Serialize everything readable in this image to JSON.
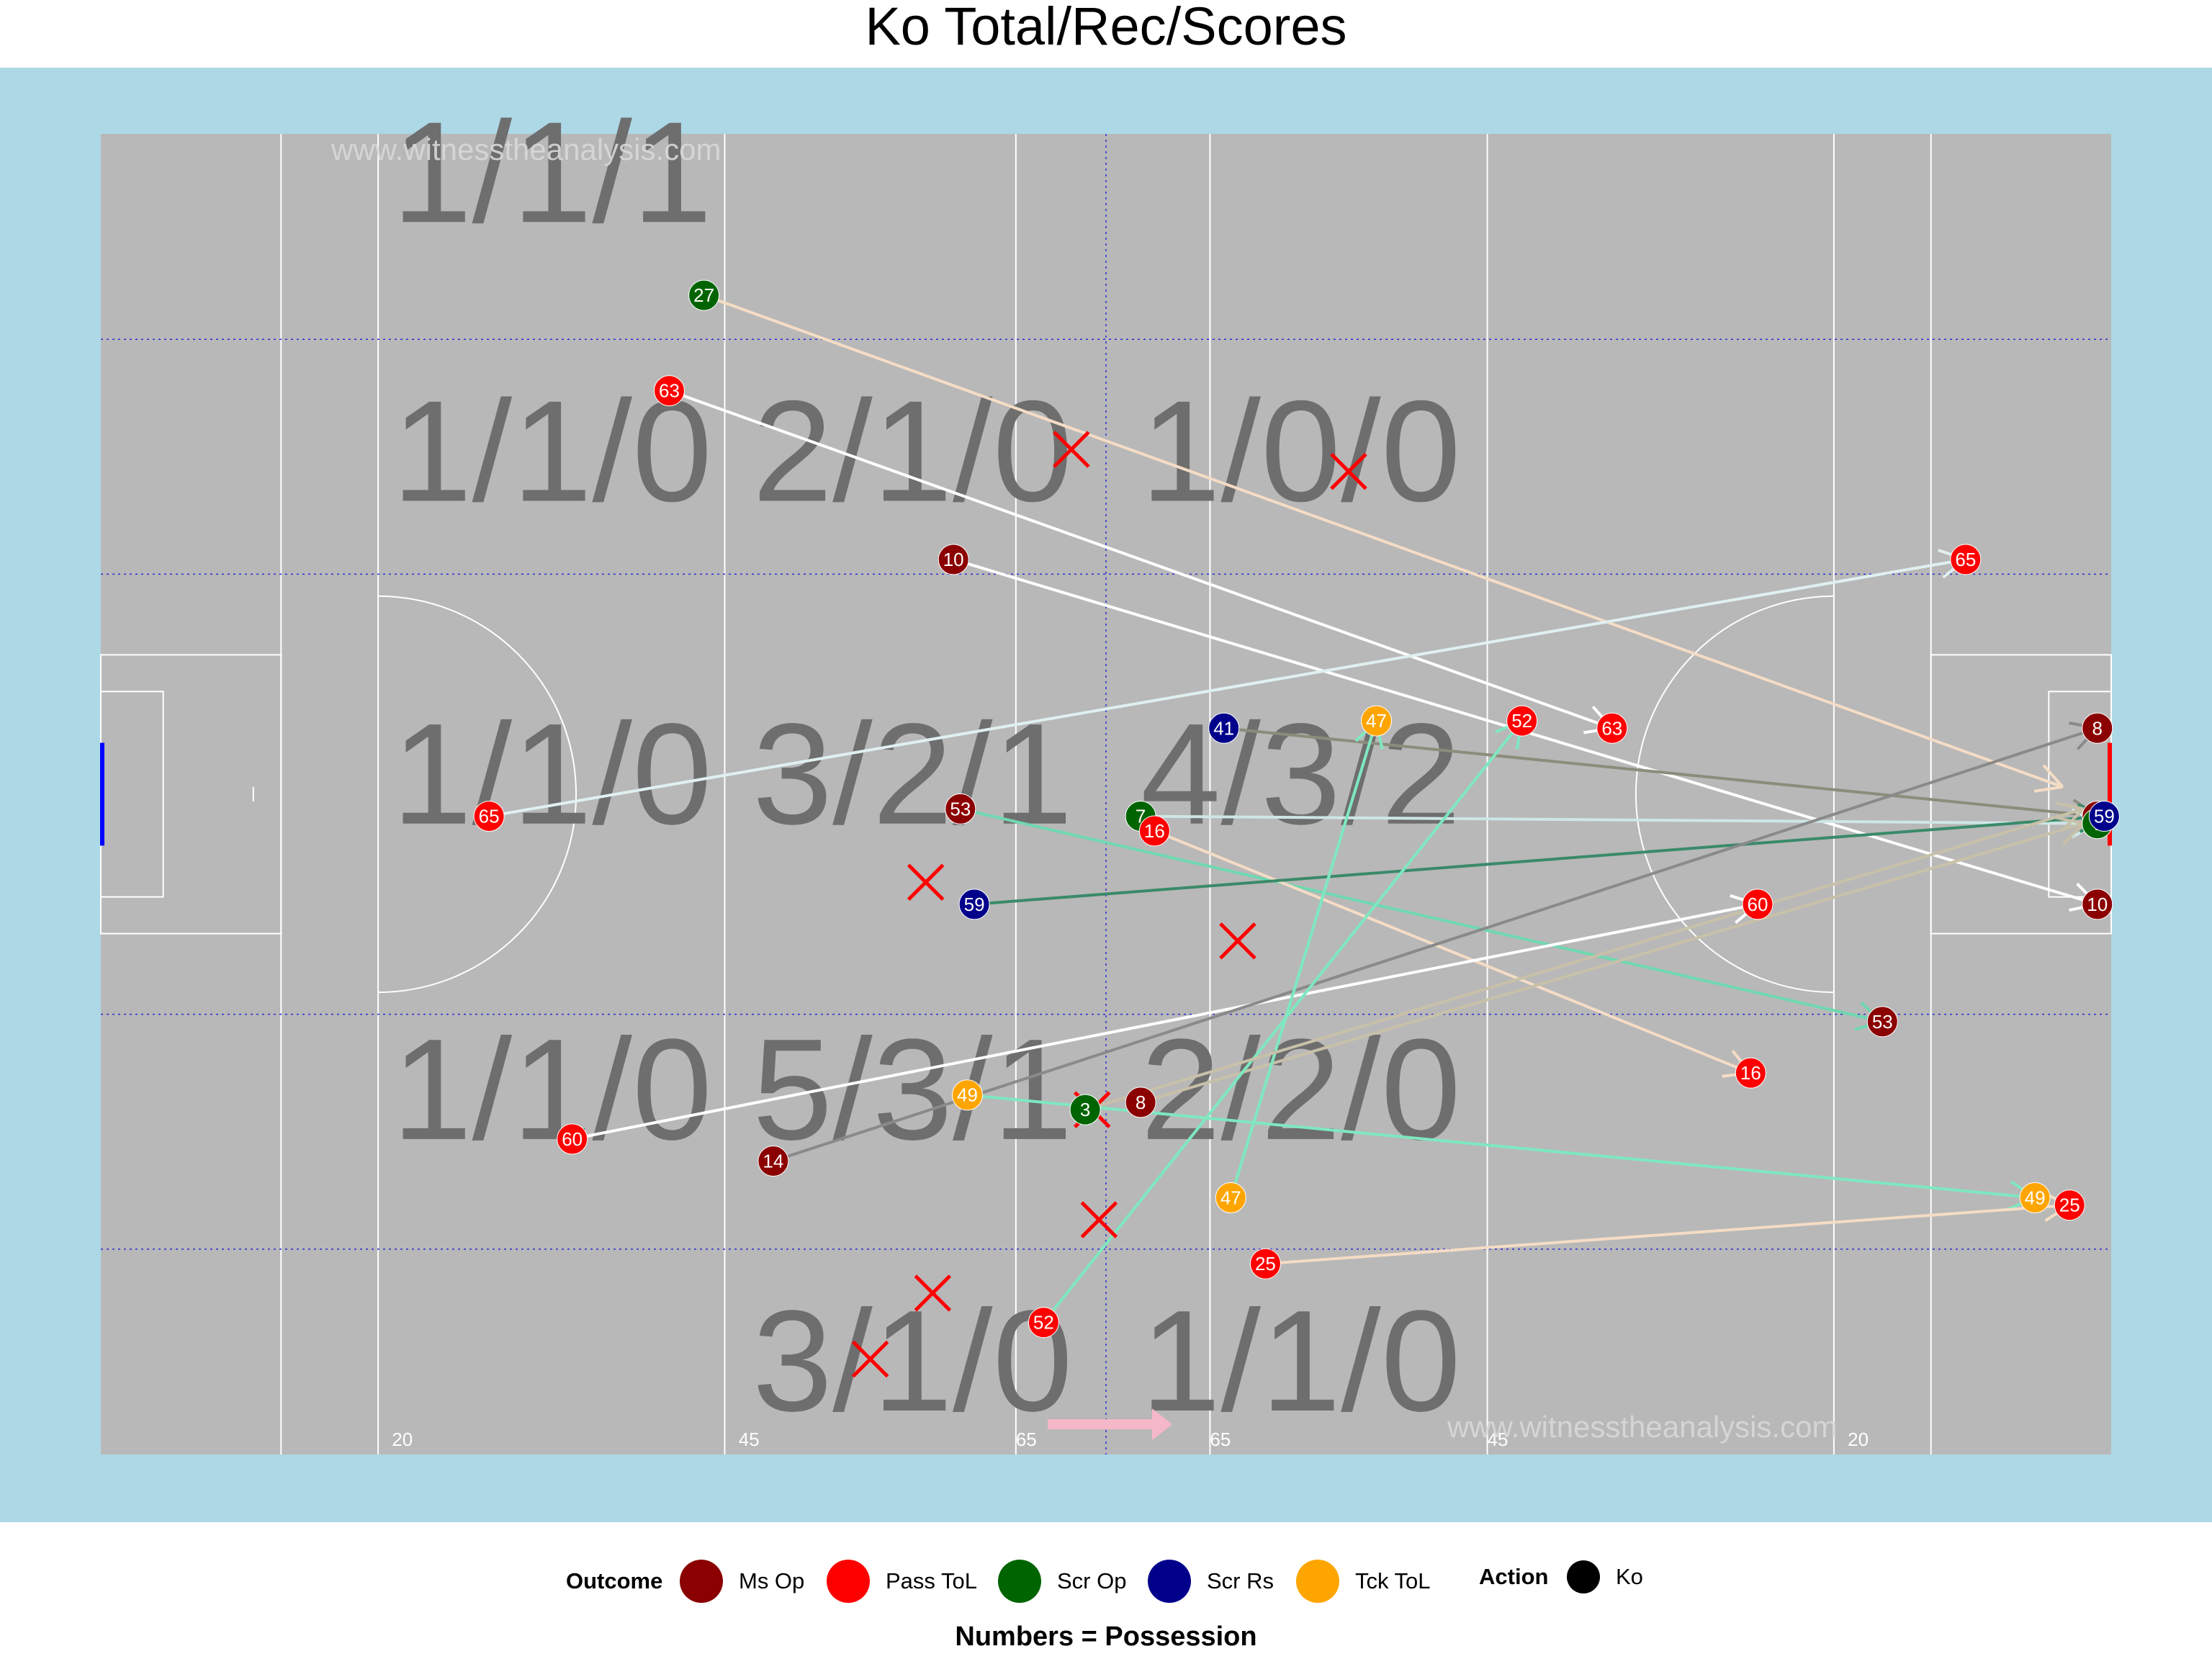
{
  "title": "Ko Total/Rec/Scores",
  "watermark": "www.witnesstheanalysis.com",
  "caption": "Numbers = Possession",
  "colors": {
    "background": "#add8e6",
    "pitch": "#b8b8b8",
    "Ms Op": "#8b0000",
    "Pass ToL": "#ff0000",
    "Scr Op": "#006400",
    "Scr Rs": "#00008b",
    "Tck ToL": "#ffa500",
    "x_mark": "#ff0000",
    "zone_text": "#6e6e6e",
    "grid_dotted": "#2a2ad4"
  },
  "legend": {
    "outcome_title": "Outcome",
    "outcomes": [
      "Ms Op",
      "Pass ToL",
      "Scr Op",
      "Scr Rs",
      "Tck ToL"
    ],
    "action_title": "Action",
    "actions": [
      {
        "label": "Ko",
        "color": "#000000"
      }
    ]
  },
  "chart_data": {
    "type": "scatter",
    "description_axes": {
      "x_range": [
        0,
        145
      ],
      "y_range": [
        0,
        90
      ],
      "grid": true
    },
    "yard_labels": [
      {
        "x": 21,
        "text": "20"
      },
      {
        "x": 46,
        "text": "45"
      },
      {
        "x": 66,
        "text": "65"
      },
      {
        "x": 80,
        "text": "65"
      },
      {
        "x": 100,
        "text": "45"
      },
      {
        "x": 126,
        "text": "20"
      }
    ],
    "zone_labels": [
      {
        "x": 21,
        "y": 84,
        "text": "1/1/1"
      },
      {
        "x": 21,
        "y": 65,
        "text": "1/1/0"
      },
      {
        "x": 47,
        "y": 65,
        "text": "2/1/0"
      },
      {
        "x": 75,
        "y": 65,
        "text": "1/0/0"
      },
      {
        "x": 21,
        "y": 43,
        "text": "1/1/0"
      },
      {
        "x": 47,
        "y": 43,
        "text": "3/2/1"
      },
      {
        "x": 75,
        "y": 43,
        "text": "4/3/2"
      },
      {
        "x": 21,
        "y": 21.5,
        "text": "1/1/0"
      },
      {
        "x": 47,
        "y": 21.5,
        "text": "5/3/1"
      },
      {
        "x": 75,
        "y": 21.5,
        "text": "2/2/0"
      },
      {
        "x": 47,
        "y": 3,
        "text": "3/1/0"
      },
      {
        "x": 75,
        "y": 3,
        "text": "1/1/0"
      }
    ],
    "kickouts": [
      {
        "label": "27",
        "outcome": "Scr Op",
        "x": 43.5,
        "y": 79,
        "end_x": 141.5,
        "end_y": 45.5,
        "line": "#f5dcc5",
        "end_label": false
      },
      {
        "label": "63",
        "outcome": "Pass ToL",
        "x": 41,
        "y": 72.5,
        "end_x": 109,
        "end_y": 49.5,
        "line": "#ffffff",
        "end_label": true
      },
      {
        "label": "10",
        "outcome": "Ms Op",
        "x": 61.5,
        "y": 61,
        "end_x": 144,
        "end_y": 37.5,
        "line": "#ffffff",
        "end_label": true
      },
      {
        "label": "65",
        "outcome": "Pass ToL",
        "x": 28,
        "y": 43.5,
        "end_x": 134.5,
        "end_y": 61,
        "line": "#e0f0f0",
        "end_label": true
      },
      {
        "label": "41",
        "outcome": "Scr Rs",
        "x": 81,
        "y": 49.5,
        "end_x": 144,
        "end_y": 43.5,
        "line": "#8c8c7c",
        "end_label": true,
        "end_label_text": "14",
        "end_outcome": "Ms Op"
      },
      {
        "label": "53",
        "outcome": "Ms Op",
        "x": 62,
        "y": 44,
        "end_x": 128.5,
        "end_y": 29.5,
        "line": "#6fd8b0",
        "end_label": true
      },
      {
        "label": "7",
        "outcome": "Scr Op",
        "x": 75,
        "y": 43.5,
        "end_x": 144,
        "end_y": 43,
        "line": "#cde6e6",
        "end_label": true
      },
      {
        "label": "16",
        "outcome": "Pass ToL",
        "x": 76,
        "y": 42.5,
        "end_x": 119,
        "end_y": 26,
        "line": "#f5dcc5",
        "end_label": true
      },
      {
        "label": "59",
        "outcome": "Scr Rs",
        "x": 63,
        "y": 37.5,
        "end_x": 144.5,
        "end_y": 43.5,
        "line": "#3a8a6a",
        "end_label": true
      },
      {
        "label": "60",
        "outcome": "Pass ToL",
        "x": 34,
        "y": 21.5,
        "end_x": 119.5,
        "end_y": 37.5,
        "line": "#ffffff",
        "end_label": true
      },
      {
        "label": "14",
        "outcome": "Ms Op",
        "x": 48.5,
        "y": 20,
        "end_x": 144,
        "end_y": 49.5,
        "line": "#8a8a8a",
        "end_label": true,
        "end_label_text": "8",
        "end_outcome": "Ms Op"
      },
      {
        "label": "49",
        "outcome": "Tck ToL",
        "x": 62.5,
        "y": 24.5,
        "end_x": 139.5,
        "end_y": 17.5,
        "line": "#7ee8c0",
        "end_label": true
      },
      {
        "label": "8",
        "outcome": "Ms Op",
        "x": 75,
        "y": 24,
        "end_x": 143,
        "end_y": 43,
        "line": "#c8c0a8",
        "end_label": false
      },
      {
        "label": "47",
        "outcome": "Tck ToL",
        "x": 81.5,
        "y": 17.5,
        "end_x": 92,
        "end_y": 50,
        "line": "#7ee8c0",
        "end_label": true
      },
      {
        "label": "25",
        "outcome": "Pass ToL",
        "x": 84,
        "y": 13,
        "end_x": 142,
        "end_y": 17,
        "line": "#f5dcc5",
        "end_label": true
      },
      {
        "label": "52",
        "outcome": "Pass ToL",
        "x": 68,
        "y": 9,
        "end_x": 102.5,
        "end_y": 50,
        "line": "#7ee8c0",
        "end_label": true
      },
      {
        "label": "3",
        "outcome": "Scr Op",
        "x": 71,
        "y": 23.5,
        "end_x": 143,
        "end_y": 44,
        "line": "#c8c0a8",
        "end_label": false
      }
    ],
    "misses": [
      {
        "x": 70,
        "y": 68.5
      },
      {
        "x": 90,
        "y": 67
      },
      {
        "x": 59.5,
        "y": 39
      },
      {
        "x": 82,
        "y": 35
      },
      {
        "x": 71.5,
        "y": 23.5
      },
      {
        "x": 72,
        "y": 16
      },
      {
        "x": 60,
        "y": 11
      },
      {
        "x": 55.5,
        "y": 6.5
      }
    ]
  }
}
